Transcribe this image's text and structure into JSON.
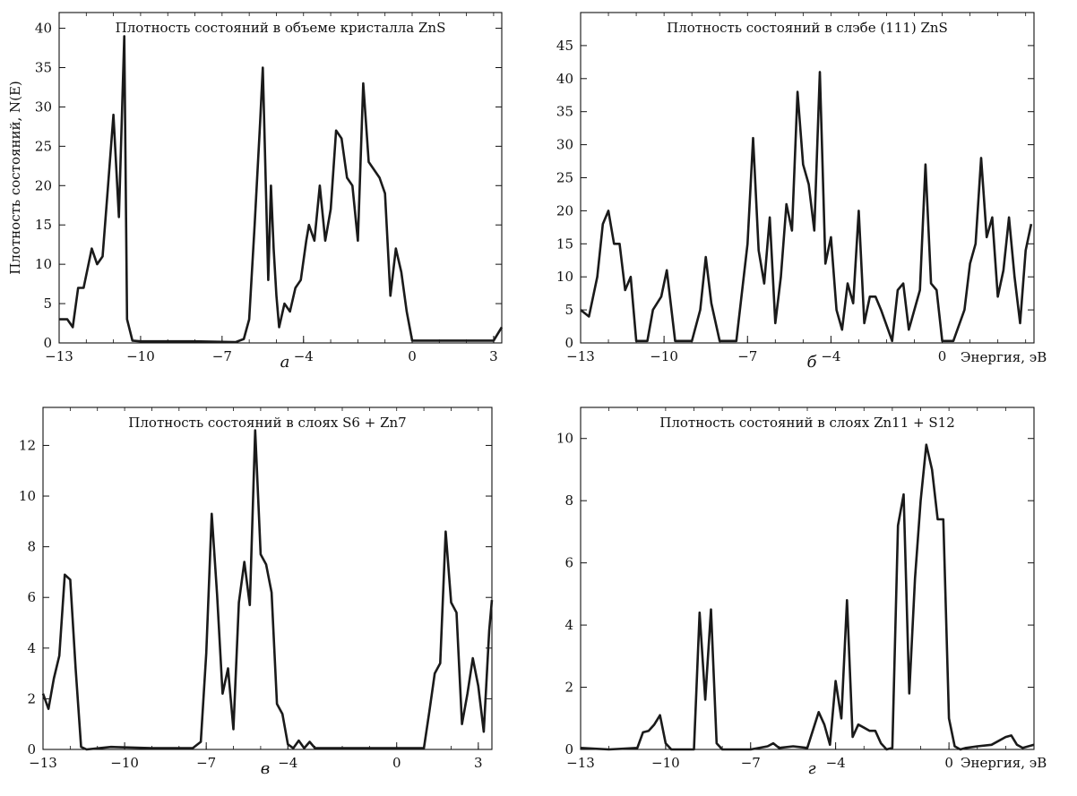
{
  "chart_data": [
    {
      "type": "line",
      "panel_letter": "а",
      "title": "Плотность состояний в объеме кристалла  ZnS",
      "xlabel": "",
      "ylabel": "Плотность состояний, N(E)",
      "xlim": [
        -13,
        3.3
      ],
      "ylim": [
        0,
        42
      ],
      "xticks": [
        -13,
        -10,
        -7,
        -4,
        0,
        3
      ],
      "yticks": [
        0,
        5,
        10,
        15,
        20,
        25,
        30,
        35,
        40
      ],
      "grid": false,
      "series": [
        {
          "x": [
            -13,
            -12.7,
            -12.5,
            -12.3,
            -12.1,
            -11.8,
            -11.6,
            -11.4,
            -11.2,
            -11.0,
            -10.8,
            -10.6,
            -10.5,
            -10.3,
            -10.0,
            -8.0,
            -6.5,
            -6.2,
            -6.0,
            -5.8,
            -5.6,
            -5.5,
            -5.3,
            -5.2,
            -5.1,
            -5.0,
            -4.9,
            -4.7,
            -4.5,
            -4.3,
            -4.1,
            -3.9,
            -3.8,
            -3.6,
            -3.4,
            -3.2,
            -3.0,
            -2.8,
            -2.6,
            -2.4,
            -2.2,
            -2.0,
            -1.8,
            -1.6,
            -1.4,
            -1.2,
            -1.0,
            -0.8,
            -0.6,
            -0.4,
            -0.2,
            0.0,
            0.2,
            0.5,
            2.5,
            3.0,
            3.3
          ],
          "y": [
            3,
            3,
            2,
            7,
            7,
            12,
            10,
            11,
            20,
            29,
            16,
            39,
            3,
            0.3,
            0.2,
            0.2,
            0.1,
            0.5,
            3,
            15,
            28,
            35,
            8,
            20,
            12,
            6,
            2,
            5,
            4,
            7,
            8,
            13,
            15,
            13,
            20,
            13,
            17,
            27,
            26,
            21,
            20,
            13,
            33,
            23,
            22,
            21,
            19,
            6,
            12,
            9,
            4,
            0.3,
            0.3,
            0.3,
            0.3,
            0.3,
            2
          ]
        }
      ]
    },
    {
      "type": "line",
      "panel_letter": "б",
      "title": "Плотность состояний в слэбе (111) ZnS",
      "xlabel": "Энергия, эВ",
      "ylabel": "",
      "xlim": [
        -13,
        3.3
      ],
      "ylim": [
        0,
        50
      ],
      "xticks": [
        -13,
        -10,
        -7,
        -4,
        0
      ],
      "yticks": [
        0,
        5,
        10,
        15,
        20,
        25,
        30,
        35,
        40,
        45
      ],
      "grid": false,
      "series": [
        {
          "x": [
            -13,
            -12.7,
            -12.4,
            -12.2,
            -12.0,
            -11.8,
            -11.6,
            -11.4,
            -11.2,
            -11.0,
            -10.6,
            -10.4,
            -10.1,
            -9.9,
            -9.6,
            -9.0,
            -8.7,
            -8.5,
            -8.3,
            -8.0,
            -7.4,
            -7.0,
            -6.8,
            -6.6,
            -6.4,
            -6.2,
            -6.0,
            -5.8,
            -5.6,
            -5.4,
            -5.2,
            -5.0,
            -4.8,
            -4.6,
            -4.4,
            -4.2,
            -4.0,
            -3.8,
            -3.6,
            -3.4,
            -3.2,
            -3.0,
            -2.8,
            -2.6,
            -2.4,
            -2.2,
            -1.8,
            -1.6,
            -1.4,
            -1.2,
            -1.0,
            -0.8,
            -0.6,
            -0.4,
            -0.2,
            0.0,
            0.4,
            0.8,
            1.0,
            1.2,
            1.4,
            1.6,
            1.8,
            2.0,
            2.2,
            2.4,
            2.6,
            2.8,
            3.0,
            3.2
          ],
          "y": [
            5,
            4,
            10,
            18,
            20,
            15,
            15,
            8,
            10,
            0.3,
            0.3,
            5,
            7,
            11,
            0.3,
            0.3,
            5,
            13,
            6,
            0.3,
            0.3,
            15,
            31,
            14,
            9,
            19,
            3,
            10,
            21,
            17,
            38,
            27,
            24,
            17,
            41,
            12,
            16,
            5,
            2,
            9,
            6,
            20,
            3,
            7,
            7,
            5,
            0.3,
            8,
            9,
            2,
            5,
            8,
            27,
            9,
            8,
            0.3,
            0.3,
            5,
            12,
            15,
            28,
            16,
            19,
            7,
            11,
            19,
            10,
            3,
            14,
            18
          ]
        }
      ]
    },
    {
      "type": "line",
      "panel_letter": "в",
      "title": "Плотность состояний в слоях S6 + Zn7",
      "xlabel": "",
      "ylabel": "",
      "xlim": [
        -13,
        3.5
      ],
      "ylim": [
        0,
        13.5
      ],
      "xticks": [
        -13,
        -10,
        -7,
        -4,
        0,
        3
      ],
      "yticks": [
        0,
        2,
        4,
        6,
        8,
        10,
        12
      ],
      "grid": false,
      "series": [
        {
          "x": [
            -13,
            -12.8,
            -12.6,
            -12.4,
            -12.2,
            -12.0,
            -11.8,
            -11.6,
            -11.4,
            -10.5,
            -9.0,
            -7.5,
            -7.2,
            -7.0,
            -6.8,
            -6.6,
            -6.4,
            -6.2,
            -6.0,
            -5.8,
            -5.6,
            -5.4,
            -5.2,
            -5.0,
            -4.8,
            -4.6,
            -4.4,
            -4.2,
            -4.0,
            -3.8,
            -3.6,
            -3.4,
            -3.2,
            -3.0,
            -1.0,
            1.0,
            1.2,
            1.4,
            1.6,
            1.8,
            2.0,
            2.2,
            2.4,
            2.6,
            2.8,
            3.0,
            3.2,
            3.4,
            3.5
          ],
          "y": [
            2.2,
            1.6,
            2.8,
            3.7,
            6.9,
            6.7,
            3.2,
            0.1,
            0.0,
            0.1,
            0.05,
            0.05,
            0.3,
            3.8,
            9.3,
            6.1,
            2.2,
            3.2,
            0.8,
            5.8,
            7.4,
            5.7,
            12.6,
            7.7,
            7.3,
            6.2,
            1.8,
            1.4,
            0.2,
            0.05,
            0.35,
            0.05,
            0.3,
            0.05,
            0.05,
            0.05,
            1.5,
            3.0,
            3.4,
            8.6,
            5.8,
            5.4,
            1.0,
            2.2,
            3.6,
            2.5,
            0.7,
            4.7,
            5.9
          ]
        }
      ]
    },
    {
      "type": "line",
      "panel_letter": "г",
      "title": "Плотность состояний в слоях Zn11 + S12",
      "xlabel": "Энергия, эВ",
      "ylabel": "",
      "xlim": [
        -13,
        3.0
      ],
      "ylim": [
        0,
        11
      ],
      "xticks": [
        -13,
        -10,
        -7,
        -4,
        0
      ],
      "yticks": [
        0,
        2,
        4,
        6,
        8,
        10
      ],
      "grid": false,
      "series": [
        {
          "x": [
            -13,
            -12,
            -11.0,
            -10.8,
            -10.6,
            -10.4,
            -10.2,
            -10.0,
            -9.8,
            -9.5,
            -9.2,
            -9.0,
            -8.8,
            -8.6,
            -8.4,
            -8.2,
            -8.0,
            -7.0,
            -6.4,
            -6.2,
            -6.0,
            -5.5,
            -5.0,
            -4.6,
            -4.4,
            -4.2,
            -4.0,
            -3.8,
            -3.6,
            -3.4,
            -3.2,
            -3.0,
            -2.8,
            -2.6,
            -2.4,
            -2.2,
            -2.0,
            -1.8,
            -1.6,
            -1.4,
            -1.2,
            -1.0,
            -0.8,
            -0.6,
            -0.4,
            -0.2,
            0.0,
            0.2,
            0.4,
            0.6,
            1.0,
            1.5,
            2.0,
            2.2,
            2.4,
            2.6,
            3.0
          ],
          "y": [
            0.05,
            0.0,
            0.05,
            0.55,
            0.6,
            0.8,
            1.1,
            0.2,
            0.0,
            0.0,
            0.0,
            0.0,
            4.4,
            1.6,
            4.5,
            0.2,
            0.0,
            0.0,
            0.1,
            0.2,
            0.05,
            0.1,
            0.05,
            1.2,
            0.8,
            0.15,
            2.2,
            1.0,
            4.8,
            0.4,
            0.8,
            0.7,
            0.6,
            0.6,
            0.2,
            0.0,
            0.05,
            7.2,
            8.2,
            1.8,
            5.5,
            8.0,
            9.8,
            9.0,
            7.4,
            7.4,
            1.0,
            0.1,
            0.0,
            0.05,
            0.1,
            0.15,
            0.4,
            0.45,
            0.15,
            0.05,
            0.15
          ]
        }
      ]
    }
  ]
}
